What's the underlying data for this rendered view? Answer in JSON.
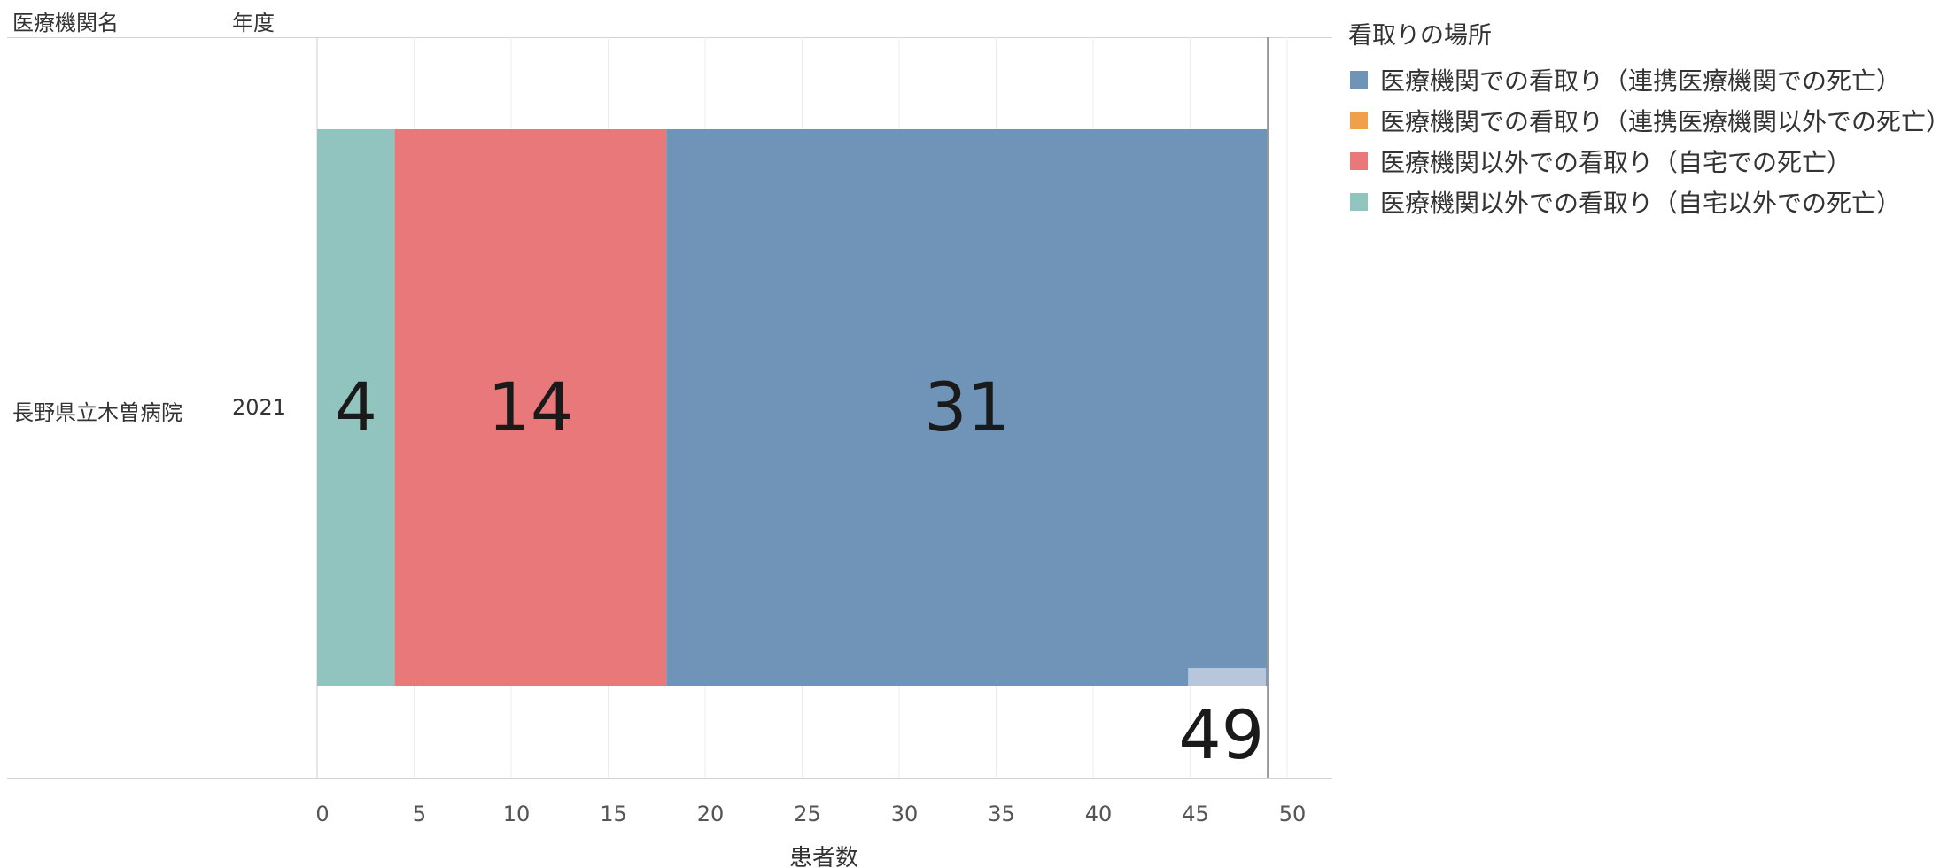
{
  "table": {
    "col_headers": [
      "医療機関名",
      "年度"
    ],
    "row": {
      "institution": "長野県立木曽病院",
      "year": "2021"
    }
  },
  "legend": {
    "title": "看取りの場所",
    "items": [
      {
        "label": "医療機関での看取り（連携医療機関での死亡）",
        "color": "#7094b8"
      },
      {
        "label": "医療機関での看取り（連携医療機関以外での死亡）",
        "color": "#f0a04b"
      },
      {
        "label": "医療機関以外での看取り（自宅での死亡）",
        "color": "#e8787a"
      },
      {
        "label": "医療機関以外での看取り（自宅以外での死亡）",
        "color": "#92c4bf"
      }
    ]
  },
  "chart_data": {
    "type": "bar",
    "orientation": "horizontal",
    "stacked": true,
    "categories": [
      "長野県立木曽病院 2021"
    ],
    "series": [
      {
        "name": "医療機関以外での看取り（自宅以外での死亡）",
        "values": [
          4
        ],
        "label": "4",
        "color": "#92c4bf"
      },
      {
        "name": "医療機関以外での看取り（自宅での死亡）",
        "values": [
          14
        ],
        "label": "14",
        "color": "#e8787a"
      },
      {
        "name": "医療機関での看取り（連携医療機関での死亡）",
        "values": [
          31
        ],
        "label": "31",
        "color": "#7094b8"
      }
    ],
    "total": {
      "value": 49,
      "label": "49",
      "color": "#b8c6dc"
    },
    "xlabel": "患者数",
    "xlim": [
      0,
      52
    ],
    "xticks": [
      0,
      5,
      10,
      15,
      20,
      25,
      30,
      35,
      40,
      45,
      50
    ],
    "xtick_labels": [
      "0",
      "5",
      "10",
      "15",
      "20",
      "25",
      "30",
      "35",
      "40",
      "45",
      "50"
    ],
    "grid": true,
    "legend_position": "top-right"
  }
}
